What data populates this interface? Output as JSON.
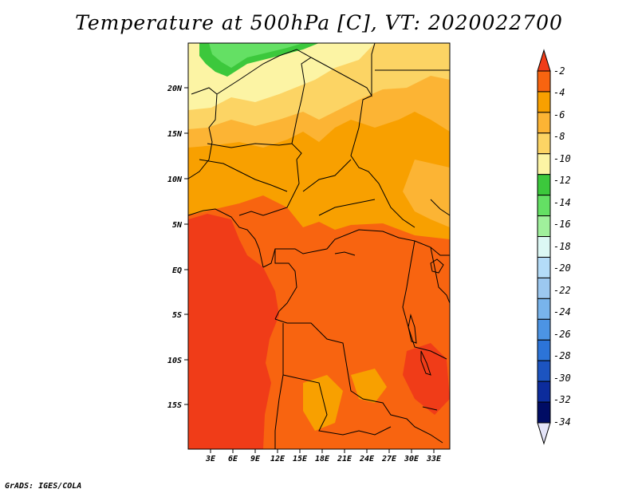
{
  "title": "Temperature at 500hPa [C], VT: 2020022700",
  "credit": "GrADS: IGES/COLA",
  "map": {
    "lat_labels": [
      "20N",
      "15N",
      "10N",
      "5N",
      "EQ",
      "5S",
      "10S",
      "15S"
    ],
    "lon_labels": [
      "3E",
      "6E",
      "9E",
      "12E",
      "15E",
      "18E",
      "21E",
      "24E",
      "27E",
      "30E",
      "33E"
    ]
  },
  "colorbar": {
    "labels": [
      "-2",
      "-4",
      "-6",
      "-8",
      "-10",
      "-12",
      "-14",
      "-16",
      "-18",
      "-20",
      "-22",
      "-24",
      "-26",
      "-28",
      "-30",
      "-32",
      "-34"
    ],
    "colors": [
      "#f03c18",
      "#f86410",
      "#f8a000",
      "#fcb434",
      "#fcd464",
      "#fcf4a4",
      "#3cc83c",
      "#64e064",
      "#a0f09c",
      "#dcf8f4",
      "#b4dcf8",
      "#9cc8f0",
      "#78b4ec",
      "#4c94e4",
      "#2c74d8",
      "#1c54c0",
      "#0c2c9c",
      "#000c64",
      "#e4e4f8"
    ]
  },
  "field_colors": {
    "c_m2": "#f03c18",
    "c_m4": "#f86410",
    "c_m6": "#f8a000",
    "c_m8": "#fcb434",
    "c_m10": "#fcd464",
    "c_m12": "#fcf4a4",
    "c_m14": "#3cc83c",
    "c_m16": "#64e064",
    "c_m18": "#a0f09c",
    "border": "#000000"
  }
}
